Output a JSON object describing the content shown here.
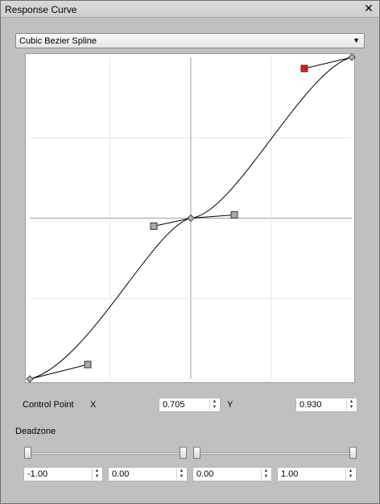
{
  "window": {
    "title": "Response Curve",
    "close_glyph": "✕"
  },
  "dropdown": {
    "selected": "Cubic Bezier Spline",
    "arrow": "▼"
  },
  "curve": {
    "x_range": [
      -1,
      1
    ],
    "y_range": [
      -1,
      1
    ],
    "grid_divisions": 4,
    "color_handle_selected": "#e8141c",
    "color_handle": "#a9a9a9",
    "color_curve": "#000000",
    "color_grid": "#e6e6e6",
    "color_axis": "#a0a0a0",
    "segments": [
      {
        "p0": [
          -1,
          -1
        ],
        "c1": [
          -0.64,
          -0.91
        ],
        "c2": [
          -0.23,
          -0.05
        ],
        "p1": [
          0,
          0
        ]
      },
      {
        "p0": [
          0,
          0
        ],
        "c1": [
          0.27,
          0.02
        ],
        "c2": [
          0.705,
          0.93
        ],
        "p1": [
          1,
          1
        ]
      }
    ],
    "points": [
      {
        "name": "anchor",
        "x": -1,
        "y": -1
      },
      {
        "name": "anchor",
        "x": 0,
        "y": 0
      },
      {
        "name": "anchor",
        "x": 1,
        "y": 1
      }
    ],
    "handles": [
      {
        "x": -0.64,
        "y": -0.91,
        "anchor": [
          -1,
          -1
        ],
        "selected": false
      },
      {
        "x": -0.23,
        "y": -0.05,
        "anchor": [
          0,
          0
        ],
        "selected": false
      },
      {
        "x": 0.27,
        "y": 0.02,
        "anchor": [
          0,
          0
        ],
        "selected": false
      },
      {
        "x": 0.705,
        "y": 0.93,
        "anchor": [
          1,
          1
        ],
        "selected": true
      }
    ]
  },
  "control_point": {
    "label": "Control Point",
    "x_label": "X",
    "y_label": "Y",
    "x_value": "0.705",
    "y_value": "0.930"
  },
  "deadzone": {
    "label": "Deadzone",
    "slider_left": {
      "min": -1,
      "max": 0,
      "low": -1,
      "high": 0
    },
    "slider_right": {
      "min": 0,
      "max": 1,
      "low": 0,
      "high": 1
    },
    "values": [
      "-1.00",
      "0.00",
      "0.00",
      "1.00"
    ]
  },
  "spin_glyphs": {
    "up": "▲",
    "down": "▼"
  }
}
